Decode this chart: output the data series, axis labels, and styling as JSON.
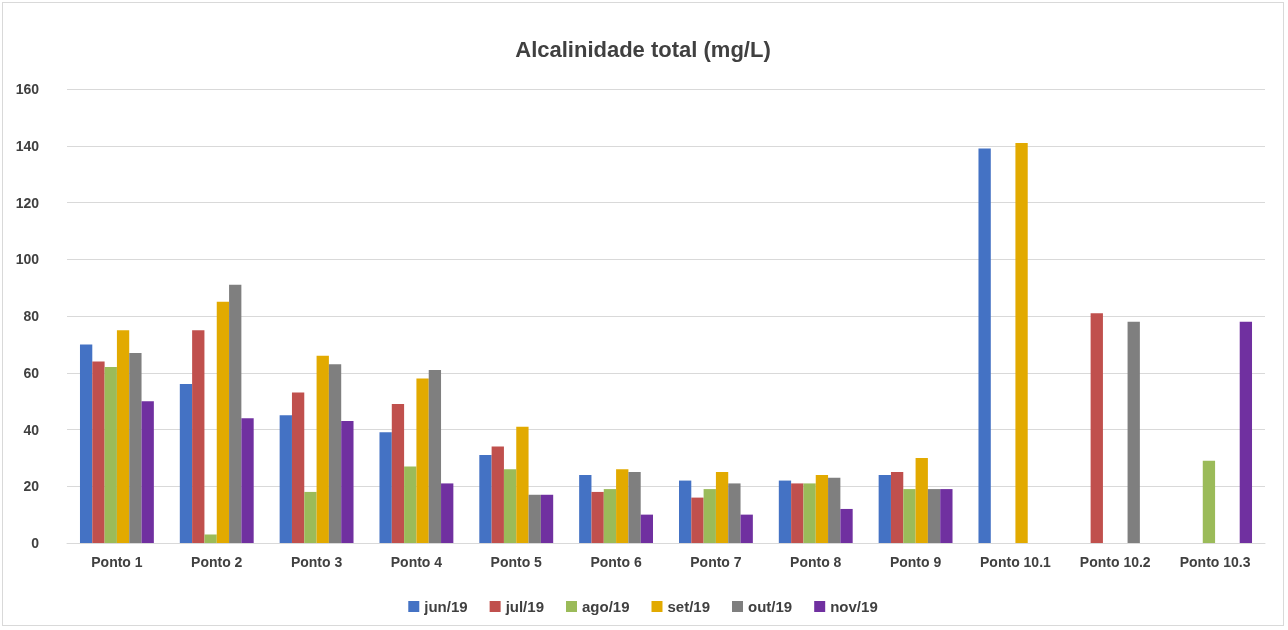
{
  "chart_data": {
    "type": "bar",
    "title": "Alcalinidade total (mg/L)",
    "categories": [
      "Ponto 1",
      "Ponto 2",
      "Ponto 3",
      "Ponto 4",
      "Ponto 5",
      "Ponto 6",
      "Ponto 7",
      "Ponto 8",
      "Ponto 9",
      "Ponto 10.1",
      "Ponto 10.2",
      "Ponto 10.3"
    ],
    "series": [
      {
        "name": "jun/19",
        "color": "#4472c4",
        "values": [
          70,
          56,
          45,
          39,
          31,
          24,
          22,
          22,
          24,
          139,
          null,
          null
        ]
      },
      {
        "name": "jul/19",
        "color": "#c0504d",
        "values": [
          64,
          75,
          53,
          49,
          34,
          18,
          16,
          21,
          25,
          null,
          81,
          null
        ]
      },
      {
        "name": "ago/19",
        "color": "#9bbb59",
        "values": [
          62,
          3,
          18,
          27,
          26,
          19,
          19,
          21,
          19,
          null,
          null,
          29
        ]
      },
      {
        "name": "set/19",
        "color": "#e2aa00",
        "values": [
          75,
          85,
          66,
          58,
          41,
          26,
          25,
          24,
          30,
          141,
          null,
          null
        ]
      },
      {
        "name": "out/19",
        "color": "#7f7f7f",
        "values": [
          67,
          91,
          63,
          61,
          17,
          25,
          21,
          23,
          19,
          null,
          78,
          null
        ]
      },
      {
        "name": "nov/19",
        "color": "#7030a0",
        "values": [
          50,
          44,
          43,
          21,
          17,
          10,
          10,
          12,
          19,
          null,
          null,
          78
        ]
      }
    ],
    "ylim": [
      0,
      160
    ],
    "yticks": [
      0,
      20,
      40,
      60,
      80,
      100,
      120,
      140,
      160
    ],
    "grid": "y",
    "legend": "bottom"
  }
}
